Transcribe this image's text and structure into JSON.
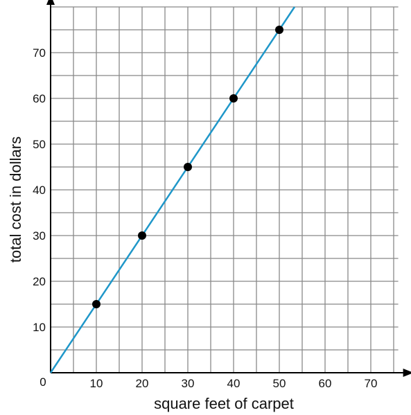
{
  "chart_data": {
    "type": "scatter",
    "title": "",
    "xlabel": "square feet of carpet",
    "ylabel": "total cost in dollars",
    "origin_label": "0",
    "xlim": [
      0,
      76
    ],
    "ylim": [
      0,
      80
    ],
    "grid": true,
    "grid_step": 5,
    "x_ticks": [
      10,
      20,
      30,
      40,
      50,
      60,
      70
    ],
    "y_ticks": [
      10,
      20,
      30,
      40,
      50,
      60,
      70
    ],
    "series": [
      {
        "x": [
          10,
          20,
          30,
          40,
          50
        ],
        "y": [
          15,
          30,
          45,
          60,
          75
        ]
      }
    ],
    "line": {
      "slope": 1.5,
      "intercept": 0
    },
    "colors": {
      "line": "#1f97c9",
      "points": "#000000",
      "grid": "#888888",
      "axis": "#000000"
    }
  }
}
